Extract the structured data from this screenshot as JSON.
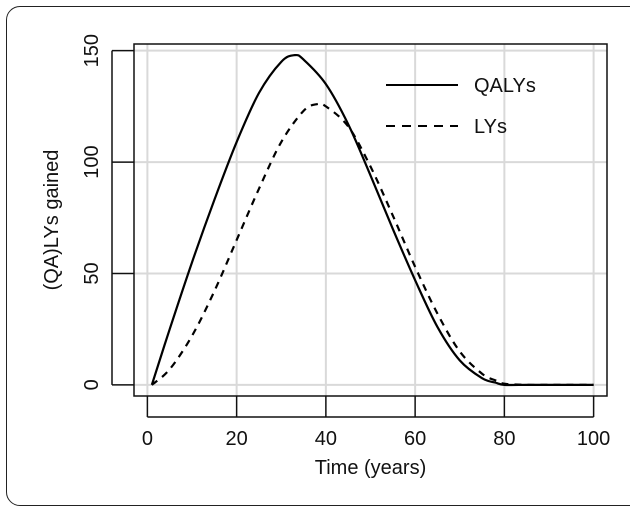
{
  "chart_data": {
    "type": "line",
    "title": "",
    "xlabel": "Time (years)",
    "ylabel": "(QA)LYs gained",
    "xlim": [
      -3,
      103
    ],
    "ylim": [
      -5,
      153
    ],
    "xticks": [
      0,
      20,
      40,
      60,
      80,
      100
    ],
    "yticks": [
      0,
      50,
      100,
      150
    ],
    "grid": true,
    "legend_position": "top-right",
    "series": [
      {
        "name": "QALYs",
        "style": "solid",
        "color": "#000000",
        "x": [
          1,
          5,
          10,
          15,
          20,
          25,
          30,
          33,
          35,
          40,
          45,
          50,
          55,
          60,
          65,
          70,
          75,
          78,
          80,
          85,
          90,
          95,
          100
        ],
        "y": [
          0,
          25,
          55,
          83,
          109,
          131,
          145,
          148,
          146,
          135,
          117,
          94,
          70,
          47,
          26,
          11,
          3,
          1,
          0,
          0,
          0,
          0,
          0
        ]
      },
      {
        "name": "LYs",
        "style": "dashed",
        "color": "#000000",
        "x": [
          1,
          5,
          10,
          15,
          20,
          25,
          30,
          35,
          38,
          40,
          45,
          50,
          55,
          60,
          65,
          70,
          75,
          78,
          80,
          85,
          90,
          95,
          100
        ],
        "y": [
          0,
          7,
          22,
          42,
          65,
          88,
          109,
          123,
          126,
          125,
          116,
          98,
          76,
          53,
          32,
          15,
          5,
          2,
          0.5,
          0,
          0,
          0,
          0
        ]
      }
    ]
  }
}
